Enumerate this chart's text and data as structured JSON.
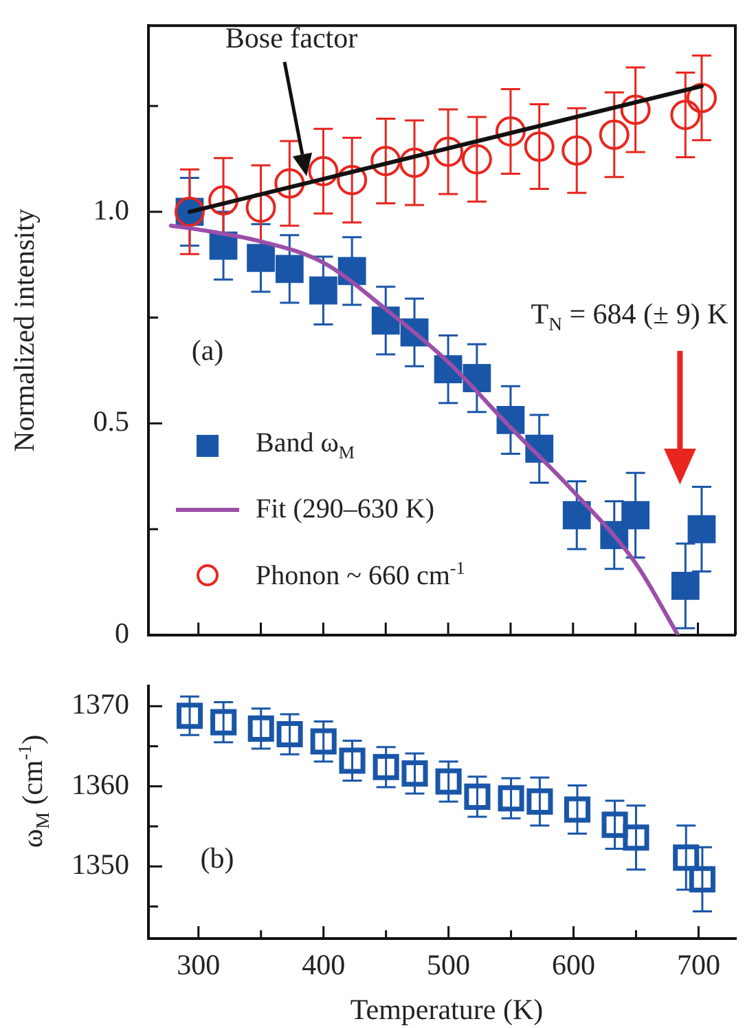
{
  "chart_data": [
    {
      "type": "scatter",
      "ylabel": "Normalized intensity",
      "xlim": [
        260,
        730
      ],
      "xticks": [
        {
          "value": 300,
          "label": null
        },
        {
          "value": 350,
          "label": null
        },
        {
          "value": 400,
          "label": null
        },
        {
          "value": 450,
          "label": null
        },
        {
          "value": 500,
          "label": null
        },
        {
          "value": 550,
          "label": null
        },
        {
          "value": 600,
          "label": null
        },
        {
          "value": 650,
          "label": null
        },
        {
          "value": 700,
          "label": null
        }
      ],
      "ylim": [
        0,
        1.44
      ],
      "yticks": [
        0,
        {
          "value": 0.25,
          "label": null
        },
        0.5,
        {
          "value": 0.75,
          "label": null
        },
        {
          "value": 1,
          "label": "1.0"
        },
        {
          "value": 1.25,
          "label": null
        }
      ],
      "tick_labels": "y",
      "legend": "bottom left",
      "grid": false,
      "annotations": [
        "Bose factor",
        "(a)",
        "T$_{N}$ = 684 (± 9) K"
      ],
      "x": [
        293,
        320,
        350,
        373,
        400,
        423,
        450,
        473,
        500,
        523,
        550,
        573,
        603,
        633,
        650,
        690,
        703
      ],
      "series": [
        {
          "name": "Band ω$_{M}$",
          "type": "scatter",
          "marker": "square",
          "color": "#1a56a8",
          "values": [
            1.0,
            0.92,
            0.891,
            0.865,
            0.814,
            0.86,
            0.743,
            0.715,
            0.628,
            0.607,
            0.508,
            0.44,
            0.283,
            0.236,
            0.283,
            0.116,
            0.25
          ],
          "errors": [
            0.08,
            0.08,
            0.08,
            0.08,
            0.08,
            0.08,
            0.08,
            0.08,
            0.08,
            0.08,
            0.08,
            0.08,
            0.08,
            0.08,
            0.1,
            0.1,
            0.1
          ]
        },
        {
          "name": "Fit (290–630 K)",
          "type": "line",
          "marker": "none",
          "color": "#9b4fa8",
          "x": [
            278,
            300,
            350,
            400,
            450,
            500,
            550,
            600,
            650,
            684
          ],
          "values": [
            0.967,
            0.958,
            0.93,
            0.88,
            0.77,
            0.645,
            0.49,
            0.34,
            0.17,
            0
          ]
        },
        {
          "name": "Phonon ~ 660 cm$^{-1}$",
          "type": "scatter",
          "marker": "circle",
          "color": "#e8261f",
          "values": [
            1.0,
            1.027,
            1.01,
            1.067,
            1.096,
            1.075,
            1.12,
            1.116,
            1.142,
            1.124,
            1.19,
            1.154,
            1.145,
            1.182,
            1.241,
            1.229,
            1.269
          ],
          "errors": [
            0.1,
            0.1,
            0.1,
            0.1,
            0.1,
            0.1,
            0.1,
            0.1,
            0.1,
            0.1,
            0.1,
            0.1,
            0.1,
            0.1,
            0.1,
            0.1,
            0.1
          ]
        },
        {
          "type": "line",
          "marker": "none",
          "color": "#111111",
          "x": [
            293,
            703
          ],
          "values": [
            1.0,
            1.297
          ]
        }
      ]
    },
    {
      "type": "scatter",
      "ylabel": "ω$_{M}$ (cm$^{-1}$)",
      "xlabel": "Temperature (K)",
      "xlim": [
        260,
        730
      ],
      "xticks": [
        300,
        {
          "value": 350,
          "label": null
        },
        400,
        {
          "value": 450,
          "label": null
        },
        500,
        {
          "value": 550,
          "label": null
        },
        600,
        {
          "value": 650,
          "label": null
        },
        700
      ],
      "ylim": [
        1341,
        1372.5
      ],
      "yticks": [
        {
          "value": 1345,
          "label": null
        },
        1350,
        {
          "value": 1355,
          "label": null
        },
        1360,
        {
          "value": 1365,
          "label": null
        },
        1370
      ],
      "grid": false,
      "annotations": [
        "(b)"
      ],
      "x": [
        293,
        320,
        350,
        373,
        400,
        423,
        450,
        473,
        500,
        523,
        550,
        573,
        603,
        633,
        650,
        690,
        703
      ],
      "series": [
        {
          "type": "scatter",
          "marker": "square",
          "color": "#1a56a8",
          "values": [
            1368.8,
            1368.0,
            1367.2,
            1366.5,
            1365.6,
            1363.2,
            1362.4,
            1361.6,
            1360.6,
            1358.7,
            1358.5,
            1358.1,
            1357.1,
            1355.2,
            1353.6,
            1351.1,
            1348.4
          ],
          "errors": [
            2.4,
            2.5,
            2.5,
            2.5,
            2.5,
            2.5,
            2.5,
            2.5,
            2.5,
            2.5,
            2.5,
            3,
            3,
            3,
            4,
            4,
            4
          ]
        }
      ]
    }
  ]
}
